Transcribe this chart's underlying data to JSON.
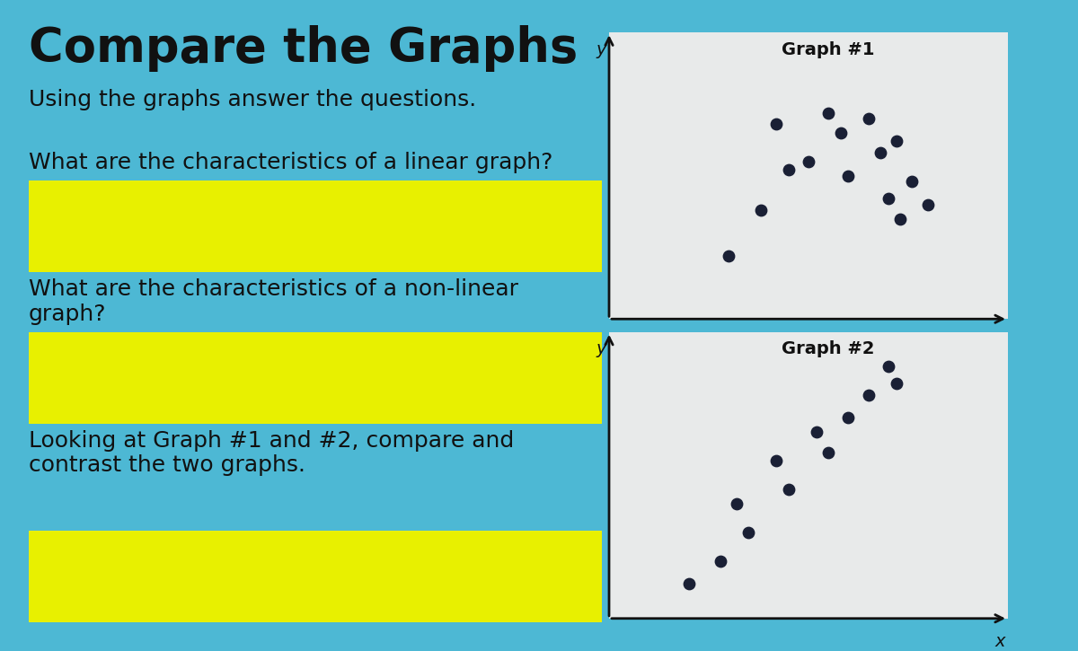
{
  "title": "Compare the Graphs",
  "subtitle": "Using the graphs answer the questions.",
  "question1": "What are the characteristics of a linear graph?",
  "question2": "What are the characteristics of a non-linear\ngraph?",
  "question3": "Looking at Graph #1 and #2, compare and\ncontrast the two graphs.",
  "graph1_label": "Graph #1",
  "graph2_label": "Graph #2",
  "outer_bg": "#4db8d4",
  "inner_bg": "#e8eaea",
  "yellow_color": "#e8f000",
  "graph_bg": "#e8eaea",
  "graph1_scatter_x": [
    3.0,
    3.8,
    4.5,
    4.2,
    5.5,
    5.0,
    5.8,
    6.5,
    6.0,
    6.8,
    7.2,
    7.0,
    7.6,
    7.3,
    8.0
  ],
  "graph1_scatter_y": [
    2.2,
    3.8,
    5.2,
    6.8,
    7.2,
    5.5,
    6.5,
    7.0,
    5.0,
    5.8,
    6.2,
    4.2,
    4.8,
    3.5,
    4.0
  ],
  "graph2_scatter_x": [
    2.0,
    2.8,
    3.5,
    3.2,
    4.5,
    4.2,
    5.5,
    5.2,
    6.0,
    6.5,
    7.2,
    7.0
  ],
  "graph2_scatter_y": [
    1.2,
    2.0,
    3.0,
    4.0,
    4.5,
    5.5,
    5.8,
    6.5,
    7.0,
    7.8,
    8.2,
    8.8
  ],
  "dot_color": "#1a2035",
  "dot_size": 80,
  "title_fontsize": 38,
  "text_fontsize": 18
}
